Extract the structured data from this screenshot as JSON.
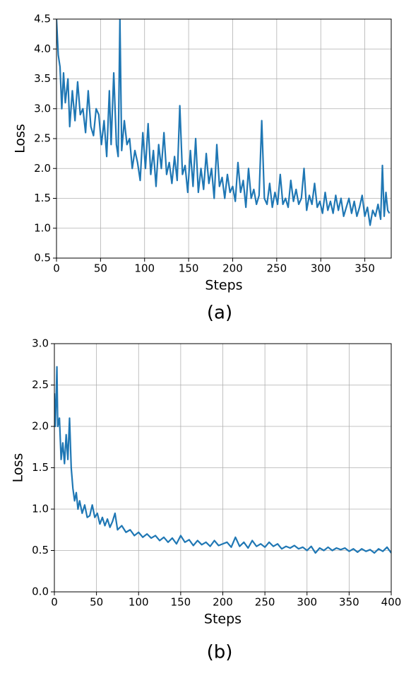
{
  "chart_data": [
    {
      "type": "line",
      "caption": "(a)",
      "x_label": "Steps",
      "y_label": "Loss",
      "color": "#1f77b4",
      "grid": true,
      "xlim": [
        0,
        380
      ],
      "ylim": [
        0.5,
        4.5
      ],
      "xticks": [
        0,
        50,
        100,
        150,
        200,
        250,
        300,
        350
      ],
      "yticks": [
        0.5,
        {
          "value": 1,
          "label": "1.0"
        },
        1.5,
        {
          "value": 2,
          "label": "2.0"
        },
        2.5,
        {
          "value": 3,
          "label": "3.0"
        },
        3.5,
        {
          "value": 4,
          "label": "4.0"
        },
        4.5
      ],
      "x": [
        0,
        2,
        4,
        6,
        8,
        10,
        13,
        15,
        18,
        21,
        24,
        27,
        30,
        33,
        36,
        39,
        42,
        45,
        48,
        51,
        54,
        57,
        60,
        62,
        65,
        68,
        70,
        72,
        74,
        77,
        80,
        83,
        86,
        89,
        92,
        95,
        98,
        101,
        104,
        107,
        110,
        113,
        116,
        119,
        122,
        125,
        128,
        131,
        134,
        137,
        140,
        143,
        146,
        149,
        152,
        155,
        158,
        161,
        164,
        167,
        170,
        173,
        176,
        179,
        182,
        185,
        188,
        191,
        194,
        197,
        200,
        203,
        206,
        209,
        212,
        215,
        218,
        221,
        224,
        227,
        230,
        233,
        236,
        239,
        242,
        245,
        248,
        251,
        254,
        257,
        260,
        263,
        266,
        269,
        272,
        275,
        278,
        281,
        284,
        287,
        290,
        293,
        296,
        299,
        302,
        305,
        308,
        311,
        314,
        317,
        320,
        323,
        326,
        329,
        332,
        335,
        338,
        341,
        344,
        347,
        350,
        353,
        356,
        359,
        362,
        365,
        368,
        370,
        372,
        374,
        376,
        378
      ],
      "values": [
        4.5,
        3.9,
        3.7,
        3.0,
        3.6,
        3.1,
        3.5,
        2.7,
        3.3,
        2.8,
        3.45,
        2.9,
        3.0,
        2.6,
        3.3,
        2.7,
        2.55,
        3.0,
        2.9,
        2.4,
        2.8,
        2.2,
        3.3,
        2.4,
        3.6,
        2.4,
        2.2,
        4.5,
        2.3,
        2.8,
        2.4,
        2.5,
        2.0,
        2.3,
        2.1,
        1.8,
        2.6,
        2.0,
        2.75,
        1.9,
        2.3,
        1.7,
        2.4,
        2.0,
        2.6,
        1.9,
        2.1,
        1.75,
        2.2,
        1.8,
        3.05,
        1.9,
        2.05,
        1.6,
        2.3,
        1.7,
        2.5,
        1.6,
        2.0,
        1.65,
        2.25,
        1.75,
        2.0,
        1.5,
        2.4,
        1.7,
        1.85,
        1.5,
        1.9,
        1.6,
        1.7,
        1.45,
        2.1,
        1.6,
        1.8,
        1.35,
        2.0,
        1.5,
        1.65,
        1.4,
        1.55,
        2.8,
        1.5,
        1.4,
        1.75,
        1.35,
        1.6,
        1.4,
        1.9,
        1.4,
        1.5,
        1.35,
        1.8,
        1.45,
        1.65,
        1.4,
        1.5,
        2.0,
        1.3,
        1.55,
        1.4,
        1.75,
        1.35,
        1.45,
        1.25,
        1.6,
        1.3,
        1.45,
        1.25,
        1.55,
        1.3,
        1.5,
        1.2,
        1.35,
        1.5,
        1.25,
        1.45,
        1.2,
        1.35,
        1.55,
        1.2,
        1.35,
        1.05,
        1.3,
        1.2,
        1.4,
        1.15,
        2.05,
        1.2,
        1.6,
        1.3,
        1.25
      ]
    },
    {
      "type": "line",
      "caption": "(b)",
      "x_label": "Steps",
      "y_label": "Loss",
      "color": "#1f77b4",
      "grid": true,
      "xlim": [
        0,
        400
      ],
      "ylim": [
        0,
        3
      ],
      "xticks": [
        0,
        50,
        100,
        150,
        200,
        250,
        300,
        350,
        400
      ],
      "yticks": [
        {
          "value": 0,
          "label": "0.0"
        },
        0.5,
        {
          "value": 1,
          "label": "1.0"
        },
        1.5,
        {
          "value": 2,
          "label": "2.0"
        },
        2.5,
        {
          "value": 3,
          "label": "3.0"
        }
      ],
      "x": [
        0,
        1,
        2,
        3,
        4,
        6,
        8,
        10,
        12,
        14,
        16,
        18,
        20,
        22,
        24,
        26,
        28,
        30,
        33,
        36,
        39,
        42,
        45,
        48,
        51,
        54,
        57,
        60,
        63,
        66,
        69,
        72,
        75,
        80,
        85,
        90,
        95,
        100,
        105,
        110,
        115,
        120,
        125,
        130,
        135,
        140,
        145,
        150,
        155,
        160,
        165,
        170,
        175,
        180,
        185,
        190,
        195,
        200,
        205,
        210,
        215,
        220,
        225,
        230,
        235,
        240,
        245,
        250,
        255,
        260,
        265,
        270,
        275,
        280,
        285,
        290,
        295,
        300,
        305,
        310,
        315,
        320,
        325,
        330,
        335,
        340,
        345,
        350,
        355,
        360,
        365,
        370,
        375,
        380,
        385,
        390,
        395,
        400
      ],
      "values": [
        2.4,
        2.0,
        2.3,
        2.72,
        2.0,
        2.1,
        1.6,
        1.8,
        1.55,
        1.9,
        1.6,
        2.1,
        1.5,
        1.25,
        1.1,
        1.2,
        1.0,
        1.1,
        0.95,
        1.05,
        0.9,
        0.92,
        1.05,
        0.9,
        0.95,
        0.82,
        0.9,
        0.8,
        0.88,
        0.78,
        0.85,
        0.95,
        0.75,
        0.8,
        0.72,
        0.75,
        0.68,
        0.72,
        0.66,
        0.7,
        0.65,
        0.68,
        0.62,
        0.66,
        0.6,
        0.65,
        0.58,
        0.68,
        0.6,
        0.63,
        0.56,
        0.62,
        0.57,
        0.6,
        0.55,
        0.62,
        0.56,
        0.58,
        0.6,
        0.54,
        0.66,
        0.55,
        0.6,
        0.53,
        0.62,
        0.55,
        0.58,
        0.54,
        0.6,
        0.55,
        0.58,
        0.52,
        0.55,
        0.53,
        0.56,
        0.52,
        0.54,
        0.5,
        0.55,
        0.47,
        0.53,
        0.5,
        0.54,
        0.5,
        0.53,
        0.51,
        0.53,
        0.49,
        0.52,
        0.48,
        0.52,
        0.49,
        0.51,
        0.47,
        0.52,
        0.49,
        0.54,
        0.47
      ]
    }
  ]
}
